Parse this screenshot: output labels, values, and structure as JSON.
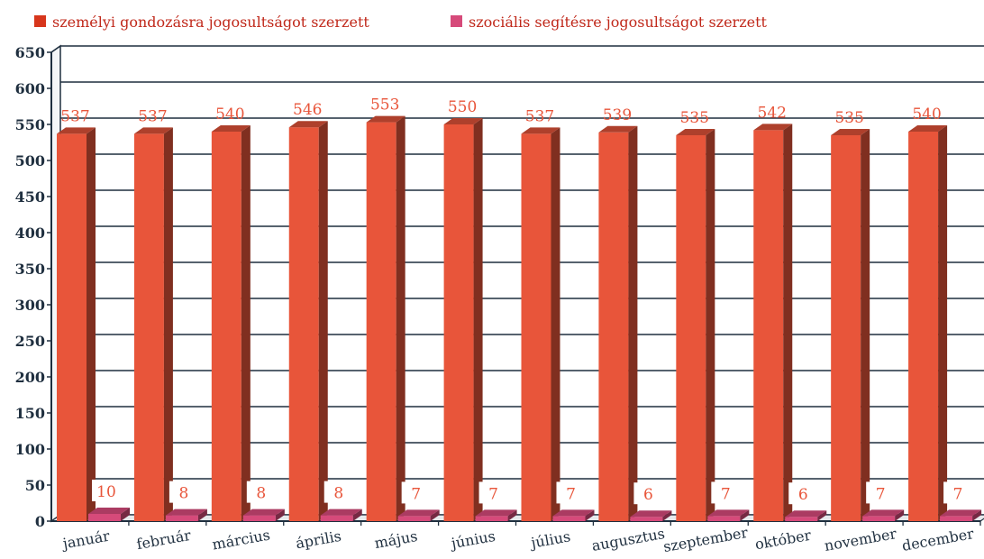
{
  "chart_data": {
    "type": "bar",
    "title": "",
    "xlabel": "",
    "ylabel": "",
    "ylim": [
      0,
      650
    ],
    "yticks": [
      0,
      50,
      100,
      150,
      200,
      250,
      300,
      350,
      400,
      450,
      500,
      550,
      600,
      650
    ],
    "grid": true,
    "legend_position": "top-left",
    "categories": [
      "január",
      "február",
      "március",
      "április",
      "május",
      "június",
      "július",
      "augusztus",
      "szeptember",
      "október",
      "november",
      "december"
    ],
    "series": [
      {
        "name": "személyi gondozásra jogosultságot szerzett",
        "color": "#e8553a",
        "values": [
          537,
          537,
          540,
          546,
          553,
          550,
          537,
          539,
          535,
          542,
          535,
          540
        ]
      },
      {
        "name": "szociális segítésre jogosultságot szerzett",
        "color": "#d64a7a",
        "values": [
          10,
          8,
          8,
          8,
          7,
          7,
          7,
          6,
          7,
          6,
          7,
          7
        ]
      }
    ]
  }
}
